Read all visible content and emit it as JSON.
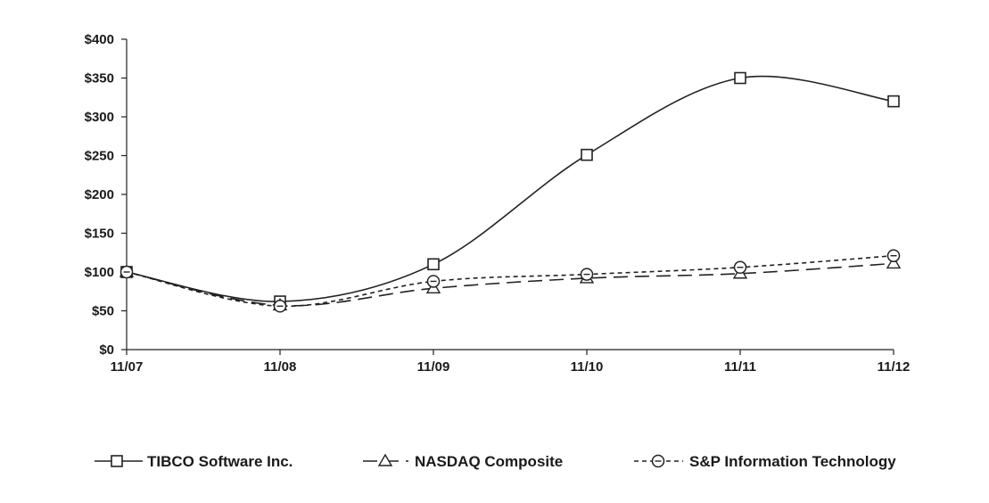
{
  "chart_data": {
    "type": "line",
    "title": "",
    "xlabel": "",
    "ylabel": "",
    "categories": [
      "11/07",
      "11/08",
      "11/09",
      "11/10",
      "11/11",
      "11/12"
    ],
    "ylim": [
      0,
      400
    ],
    "yticks": [
      0,
      50,
      100,
      150,
      200,
      250,
      300,
      350,
      400
    ],
    "ytick_labels": [
      "$0",
      "$50",
      "$100",
      "$150",
      "$200",
      "$250",
      "$300",
      "$350",
      "$400"
    ],
    "grid": false,
    "legend_position": "bottom",
    "series": [
      {
        "name": "TIBCO Software Inc.",
        "marker": "square",
        "dash": "solid",
        "color": "#222222",
        "values": [
          100,
          62,
          110,
          251,
          350,
          320
        ]
      },
      {
        "name": "NASDAQ Composite",
        "marker": "triangle",
        "dash": "long-dash",
        "color": "#222222",
        "values": [
          100,
          57,
          79,
          92,
          98,
          111
        ]
      },
      {
        "name": "S&P Information Technology",
        "marker": "circle",
        "dash": "short-dash",
        "color": "#222222",
        "values": [
          100,
          56,
          88,
          97,
          106,
          121
        ]
      }
    ]
  }
}
